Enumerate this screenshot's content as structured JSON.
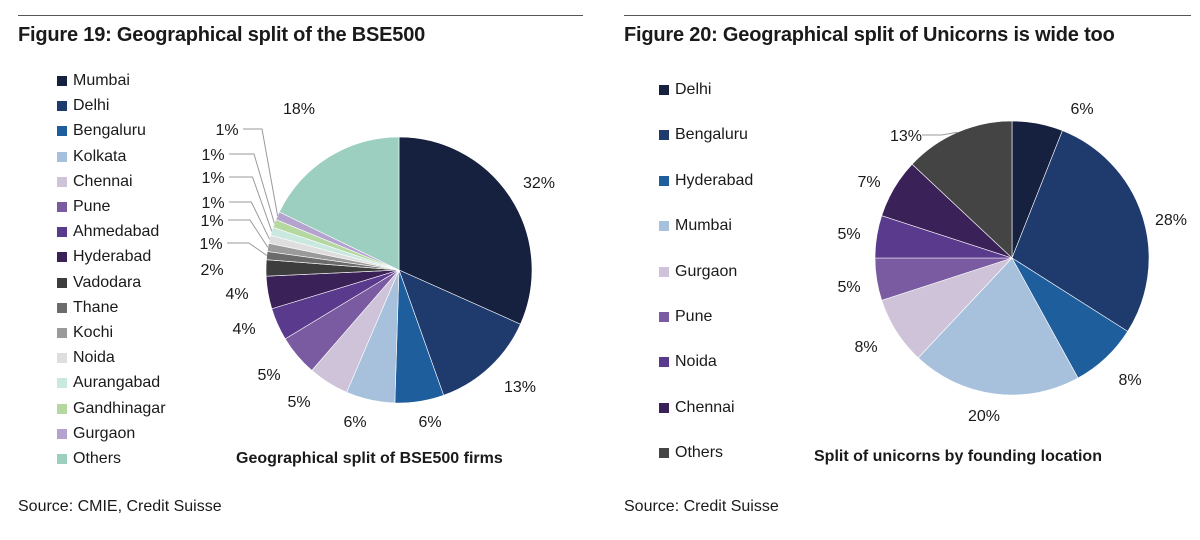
{
  "figures": [
    {
      "title": "Figure 19: Geographical split of the BSE500",
      "source": "Source: CMIE, Credit Suisse"
    },
    {
      "title": "Figure 20: Geographical split of Unicorns is wide too",
      "source": "Source: Credit Suisse"
    }
  ],
  "chart_data": [
    {
      "type": "pie",
      "title": "Geographical split of BSE500 firms",
      "legend_position": "left",
      "unit": "%",
      "categories": [
        "Mumbai",
        "Delhi",
        "Bengaluru",
        "Kolkata",
        "Chennai",
        "Pune",
        "Ahmedabad",
        "Hyderabad",
        "Vadodara",
        "Thane",
        "Kochi",
        "Noida",
        "Aurangabad",
        "Gandhinagar",
        "Gurgaon",
        "Others"
      ],
      "values": [
        32,
        13,
        6,
        6,
        5,
        5,
        4,
        4,
        2,
        1,
        1,
        1,
        1,
        1,
        1,
        18
      ],
      "labels": [
        "32%",
        "13%",
        "6%",
        "6%",
        "5%",
        "5%",
        "4%",
        "4%",
        "2%",
        "1%",
        "1%",
        "1%",
        "1%",
        "1%",
        "1%",
        "18%"
      ],
      "colors": [
        "#16213f",
        "#1f3b6e",
        "#1f5e9c",
        "#a7c0dc",
        "#cfc3da",
        "#7a5aa0",
        "#5a3a8c",
        "#3a2258",
        "#3d3d3d",
        "#6b6b6b",
        "#9a9a9a",
        "#dedede",
        "#c9e8df",
        "#b4d8a0",
        "#b5a3cf",
        "#9ccfc0"
      ]
    },
    {
      "type": "pie",
      "title": "Split of unicorns by founding location",
      "legend_position": "left",
      "unit": "%",
      "categories": [
        "Delhi",
        "Bengaluru",
        "Hyderabad",
        "Mumbai",
        "Gurgaon",
        "Pune",
        "Noida",
        "Chennai",
        "Others"
      ],
      "values": [
        6,
        28,
        8,
        20,
        8,
        5,
        5,
        7,
        13
      ],
      "labels": [
        "6%",
        "28%",
        "8%",
        "20%",
        "8%",
        "5%",
        "5%",
        "7%",
        "13%"
      ],
      "colors": [
        "#16213f",
        "#1f3b6e",
        "#1f5e9c",
        "#a7c0dc",
        "#cfc3da",
        "#7a5aa0",
        "#5a3a8c",
        "#3a2258",
        "#444444"
      ]
    }
  ]
}
